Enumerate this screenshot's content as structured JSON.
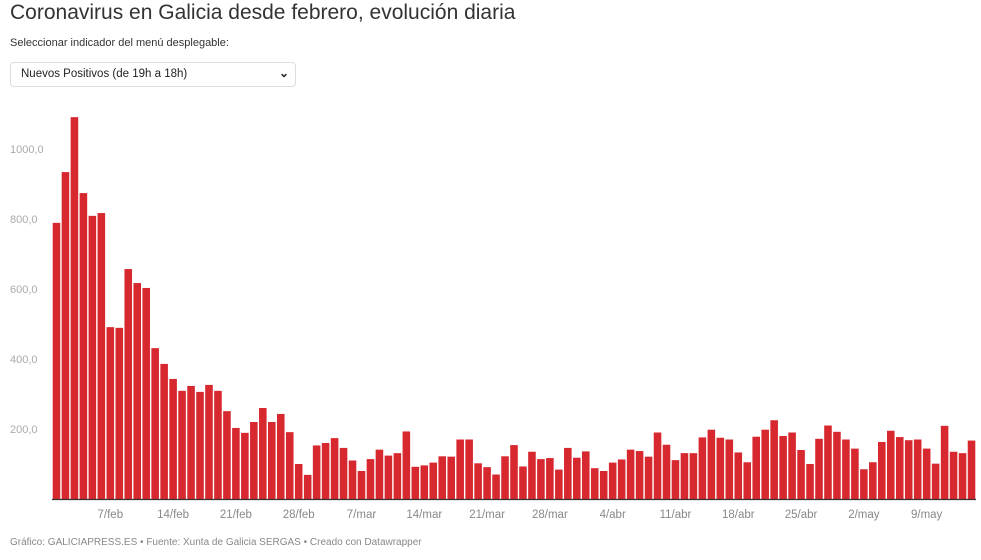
{
  "header": {
    "title": "Coronavirus en Galicia desde febrero, evolución diaria",
    "select_label": "Seleccionar indicador del menú desplegable:",
    "select_value": "Nuevos Positivos (de 19h a 18h)"
  },
  "footer": "Gráfico: GALICIAPRESS.ES • Fuente: Xunta de Galicia SERGAS • Creado con Datawrapper",
  "chart_data": {
    "type": "bar",
    "title": "",
    "xlabel": "",
    "ylabel": "",
    "ylim": [
      0,
      1100
    ],
    "grid": false,
    "color": "#d7282f",
    "y_ticks": [
      {
        "value": 200,
        "label": "200,0"
      },
      {
        "value": 400,
        "label": "400,0"
      },
      {
        "value": 600,
        "label": "600,0"
      },
      {
        "value": 800,
        "label": "800,0"
      },
      {
        "value": 1000,
        "label": "1000,0"
      }
    ],
    "x_ticks": [
      {
        "index": 6,
        "label": "7/feb"
      },
      {
        "index": 13,
        "label": "14/feb"
      },
      {
        "index": 20,
        "label": "21/feb"
      },
      {
        "index": 27,
        "label": "28/feb"
      },
      {
        "index": 34,
        "label": "7/mar"
      },
      {
        "index": 41,
        "label": "14/mar"
      },
      {
        "index": 48,
        "label": "21/mar"
      },
      {
        "index": 55,
        "label": "28/mar"
      },
      {
        "index": 62,
        "label": "4/abr"
      },
      {
        "index": 69,
        "label": "11/abr"
      },
      {
        "index": 76,
        "label": "18/abr"
      },
      {
        "index": 83,
        "label": "25/abr"
      },
      {
        "index": 90,
        "label": "2/may"
      },
      {
        "index": 97,
        "label": "9/may"
      }
    ],
    "values": [
      789,
      934,
      1091,
      874,
      809,
      817,
      491,
      489,
      657,
      617,
      603,
      431,
      386,
      343,
      309,
      323,
      306,
      326,
      309,
      251,
      203,
      189,
      220,
      260,
      220,
      243,
      191,
      100,
      69,
      153,
      160,
      174,
      146,
      110,
      80,
      114,
      141,
      124,
      131,
      193,
      92,
      96,
      104,
      122,
      121,
      170,
      170,
      102,
      91,
      70,
      122,
      154,
      93,
      135,
      114,
      117,
      84,
      146,
      118,
      136,
      88,
      80,
      104,
      113,
      141,
      137,
      121,
      190,
      155,
      111,
      131,
      131,
      176,
      198,
      175,
      170,
      133,
      105,
      178,
      198,
      225,
      180,
      190,
      140,
      100,
      172,
      210,
      192,
      170,
      144,
      85,
      105,
      163,
      195,
      177,
      168,
      170,
      144,
      101,
      209,
      135,
      131,
      167
    ]
  }
}
